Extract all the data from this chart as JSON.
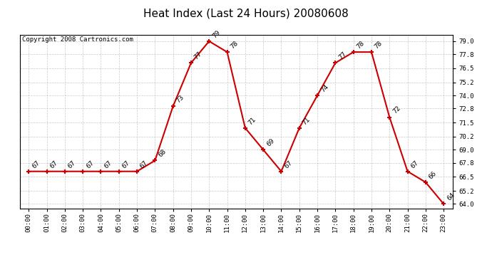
{
  "title": "Heat Index (Last 24 Hours) 20080608",
  "copyright": "Copyright 2008 Cartronics.com",
  "hours": [
    "00:00",
    "01:00",
    "02:00",
    "03:00",
    "04:00",
    "05:00",
    "06:00",
    "07:00",
    "08:00",
    "09:00",
    "10:00",
    "11:00",
    "12:00",
    "13:00",
    "14:00",
    "15:00",
    "16:00",
    "17:00",
    "18:00",
    "19:00",
    "20:00",
    "21:00",
    "22:00",
    "23:00"
  ],
  "values": [
    67,
    67,
    67,
    67,
    67,
    67,
    67,
    68,
    73,
    77,
    79,
    78,
    71,
    69,
    67,
    71,
    74,
    77,
    78,
    78,
    72,
    67,
    66,
    64
  ],
  "line_color": "#cc0000",
  "marker_color": "#cc0000",
  "bg_color": "#ffffff",
  "grid_color": "#bbbbbb",
  "y_ticks": [
    64.0,
    65.2,
    66.5,
    67.8,
    69.0,
    70.2,
    71.5,
    72.8,
    74.0,
    75.2,
    76.5,
    77.8,
    79.0
  ],
  "ylim": [
    63.6,
    79.6
  ],
  "title_fontsize": 11,
  "label_fontsize": 6.5,
  "copyright_fontsize": 6.5
}
